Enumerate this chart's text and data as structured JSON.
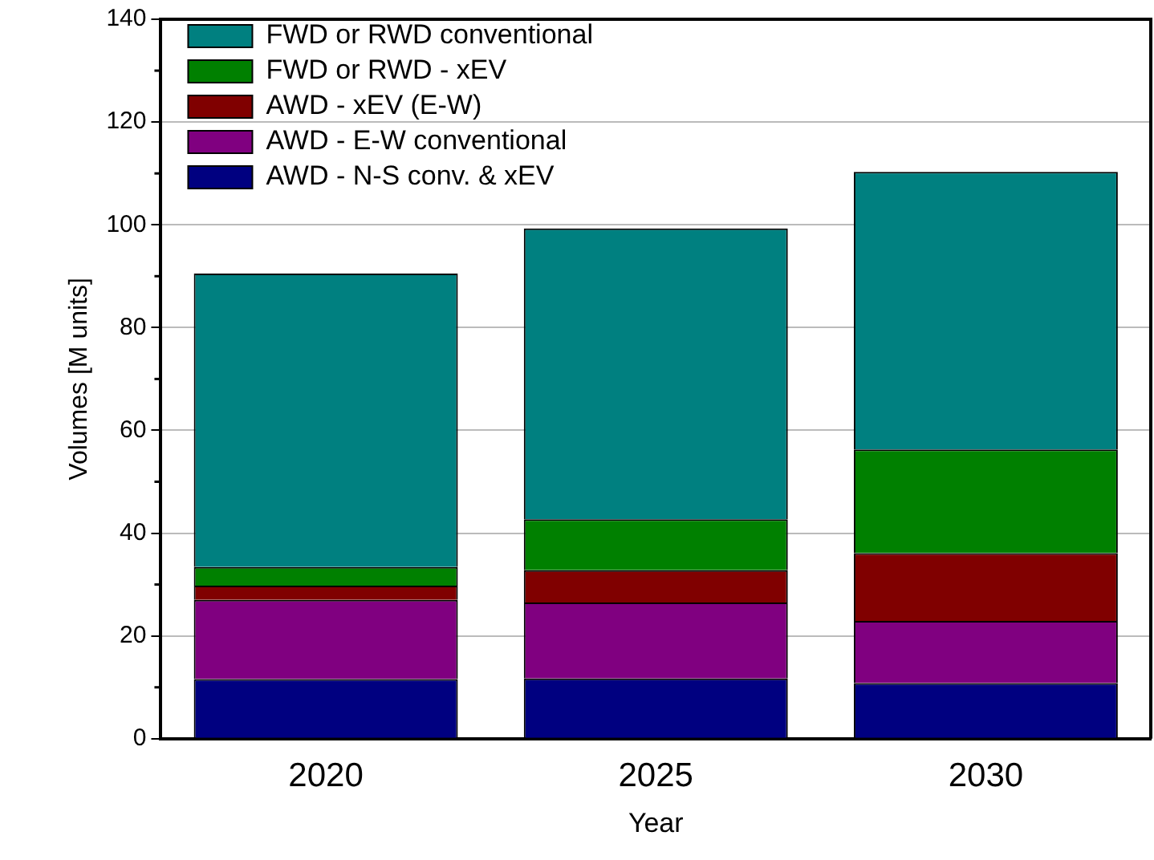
{
  "chart_data": {
    "type": "bar",
    "stacked": true,
    "xlabel": "Year",
    "ylabel": "Volumes [M units]",
    "categories": [
      "2020",
      "2025",
      "2030"
    ],
    "series": [
      {
        "name": "AWD - N-S conv. & xEV",
        "color": "#000080",
        "values": [
          11.6,
          11.7,
          10.8
        ]
      },
      {
        "name": "AWD - E-W conventional",
        "color": "#800080",
        "values": [
          15.4,
          14.8,
          12.1
        ]
      },
      {
        "name": "AWD - xEV (E-W)",
        "color": "#800000",
        "values": [
          2.8,
          6.3,
          13.2
        ]
      },
      {
        "name": "FWD or RWD - xEV",
        "color": "#008000",
        "values": [
          3.6,
          9.9,
          20.2
        ]
      },
      {
        "name": "FWD or RWD conventional",
        "color": "#008080",
        "values": [
          57.1,
          56.6,
          54.0
        ]
      }
    ],
    "ylim": [
      0,
      140
    ],
    "yticks": [
      0,
      20,
      40,
      60,
      80,
      100,
      120,
      140
    ],
    "grid": "y",
    "legend": "top left"
  }
}
